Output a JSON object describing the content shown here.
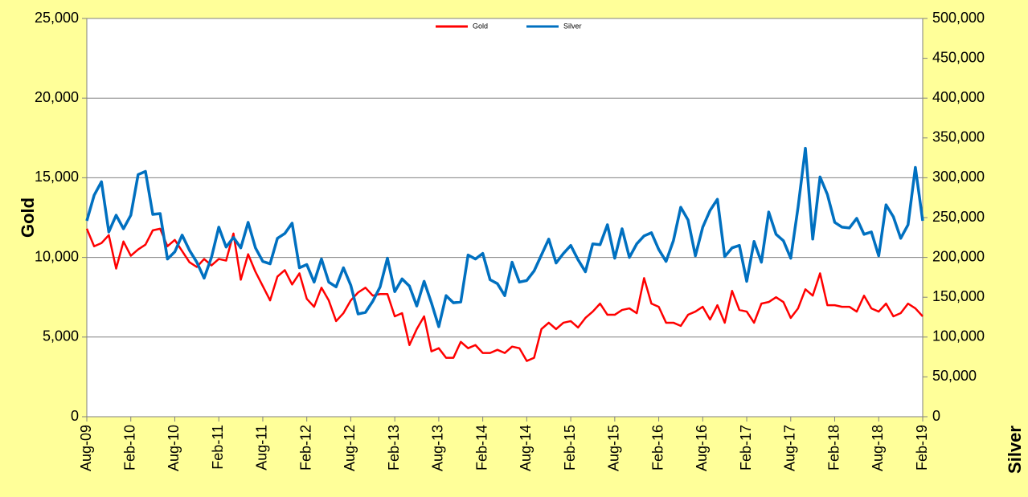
{
  "chart_data": {
    "type": "line",
    "y_label": "Gold",
    "y2_label": "Silver",
    "categories": [
      "Aug-09",
      null,
      null,
      null,
      null,
      null,
      "Feb-10",
      null,
      null,
      null,
      null,
      null,
      "Aug-10",
      null,
      null,
      null,
      null,
      null,
      "Feb-11",
      null,
      null,
      null,
      null,
      null,
      "Aug-11",
      null,
      null,
      null,
      null,
      null,
      "Feb-12",
      null,
      null,
      null,
      null,
      null,
      "Aug-12",
      null,
      null,
      null,
      null,
      null,
      "Feb-13",
      null,
      null,
      null,
      null,
      null,
      "Aug-13",
      null,
      null,
      null,
      null,
      null,
      "Feb-14",
      null,
      null,
      null,
      null,
      null,
      "Aug-14",
      null,
      null,
      null,
      null,
      null,
      "Feb-15",
      null,
      null,
      null,
      null,
      null,
      "Aug-15",
      null,
      null,
      null,
      null,
      null,
      "Feb-16",
      null,
      null,
      null,
      null,
      null,
      "Aug-16",
      null,
      null,
      null,
      null,
      null,
      "Feb-17",
      null,
      null,
      null,
      null,
      null,
      "Aug-17",
      null,
      null,
      null,
      null,
      null,
      "Feb-18",
      null,
      null,
      null,
      null,
      null,
      "Aug-18",
      null,
      null,
      null,
      null,
      null,
      "Feb-19"
    ],
    "series": [
      {
        "name": "Gold",
        "color": "#ff0000",
        "axis": "y",
        "values": [
          11800,
          10700,
          10900,
          11400,
          9300,
          11000,
          10100,
          10500,
          10800,
          11700,
          11800,
          10700,
          11100,
          10400,
          9700,
          9400,
          9900,
          9500,
          9900,
          9800,
          11500,
          8600,
          10200,
          9100,
          8200,
          7300,
          8800,
          9200,
          8300,
          9000,
          7400,
          6900,
          8100,
          7300,
          6000,
          6500,
          7300,
          7800,
          8100,
          7600,
          7700,
          7700,
          6300,
          6500,
          4500,
          5500,
          6300,
          4100,
          4300,
          3700,
          3700,
          4700,
          4300,
          4500,
          4000,
          4000,
          4200,
          4000,
          4400,
          4300,
          3500,
          3700,
          5500,
          5900,
          5500,
          5900,
          6000,
          5600,
          6200,
          6600,
          7100,
          6400,
          6400,
          6700,
          6800,
          6500,
          8700,
          7100,
          6900,
          5900,
          5900,
          5700,
          6400,
          6600,
          6900,
          6100,
          7000,
          5900,
          7900,
          6700,
          6600,
          5900,
          7100,
          7200,
          7500,
          7200,
          6200,
          6800,
          8000,
          7600,
          9000,
          7000,
          7000,
          6900,
          6900,
          6600,
          7600,
          6800,
          6600,
          7100,
          6300,
          6500,
          7100,
          6800,
          6300
        ]
      },
      {
        "name": "Silver",
        "color": "#0070c0",
        "axis": "y2",
        "values": [
          246000,
          278000,
          295000,
          232000,
          253000,
          236000,
          253000,
          304000,
          308000,
          254000,
          255000,
          198000,
          207000,
          228000,
          209000,
          194000,
          174000,
          200000,
          238000,
          213000,
          225000,
          212000,
          244000,
          212000,
          195000,
          192000,
          224000,
          230000,
          243000,
          187000,
          191000,
          169000,
          198000,
          169000,
          163000,
          187000,
          165000,
          129000,
          131000,
          145000,
          163000,
          199000,
          157000,
          173000,
          164000,
          139000,
          170000,
          143000,
          113000,
          152000,
          143000,
          144000,
          203000,
          198000,
          205000,
          172000,
          167000,
          152000,
          194000,
          169000,
          171000,
          183000,
          203000,
          223000,
          193000,
          205000,
          215000,
          197000,
          182000,
          217000,
          216000,
          241000,
          199000,
          236000,
          200000,
          217000,
          227000,
          231000,
          210000,
          195000,
          221000,
          263000,
          247000,
          202000,
          238000,
          259000,
          273000,
          201000,
          212000,
          215000,
          170000,
          220000,
          194000,
          257000,
          229000,
          221000,
          199000,
          263000,
          337000,
          223000,
          301000,
          279000,
          244000,
          238000,
          237000,
          249000,
          229000,
          232000,
          202000,
          266000,
          251000,
          224000,
          241000,
          313000,
          246000
        ]
      }
    ],
    "ylim": [
      0,
      25000
    ],
    "yticks": [
      0,
      {
        "value": 5000,
        "label": "5,000"
      },
      {
        "value": 10000,
        "label": "10,000"
      },
      {
        "value": 15000,
        "label": "15,000"
      },
      {
        "value": 20000,
        "label": "20,000"
      },
      {
        "value": 25000,
        "label": "25,000"
      }
    ],
    "y2lim": [
      0,
      500000
    ],
    "y2ticks": [
      0,
      {
        "value": 50000,
        "label": "50,000"
      },
      {
        "value": 100000,
        "label": "100,000"
      },
      {
        "value": 150000,
        "label": "150,000"
      },
      {
        "value": 200000,
        "label": "200,000"
      },
      {
        "value": 250000,
        "label": "250,000"
      },
      {
        "value": 300000,
        "label": "300,000"
      },
      {
        "value": 350000,
        "label": "350,000"
      },
      {
        "value": 400000,
        "label": "400,000"
      },
      {
        "value": 450000,
        "label": "450,000"
      },
      {
        "value": 500000,
        "label": "500,000"
      }
    ],
    "grid": true,
    "legend": "top"
  }
}
